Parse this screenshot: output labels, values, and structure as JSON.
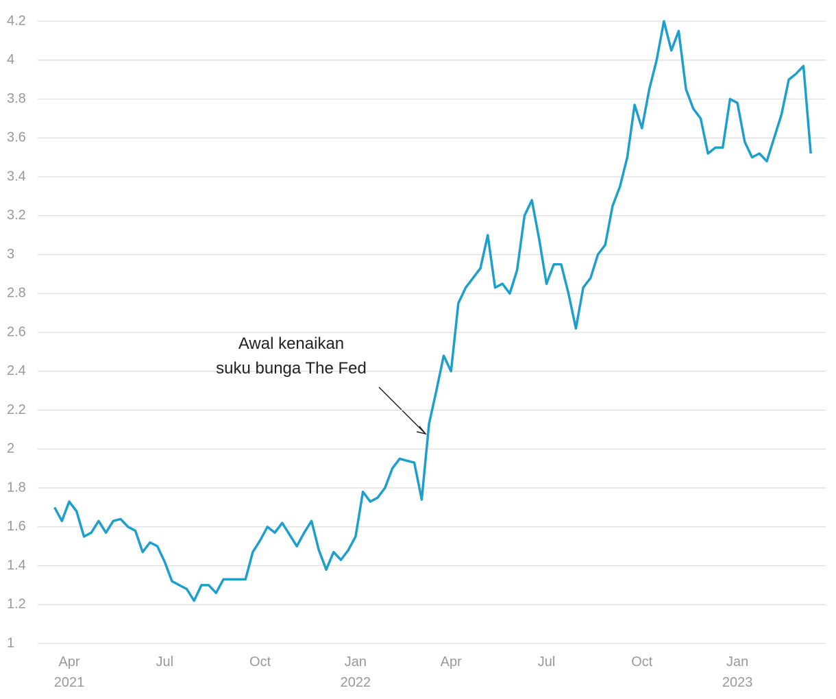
{
  "chart_data": {
    "type": "line",
    "categories": [
      null,
      null,
      "Apr 2021",
      null,
      null,
      null,
      null,
      null,
      null,
      null,
      null,
      null,
      null,
      null,
      null,
      "Jul",
      null,
      null,
      null,
      null,
      null,
      null,
      null,
      null,
      null,
      null,
      null,
      null,
      "Oct",
      null,
      null,
      null,
      null,
      null,
      null,
      null,
      null,
      null,
      null,
      null,
      null,
      "Jan 2022",
      null,
      null,
      null,
      null,
      null,
      null,
      null,
      null,
      null,
      null,
      null,
      null,
      "Apr",
      null,
      null,
      null,
      null,
      null,
      null,
      null,
      null,
      null,
      null,
      null,
      null,
      "Jul",
      null,
      null,
      null,
      null,
      null,
      null,
      null,
      null,
      null,
      null,
      null,
      null,
      "Oct",
      null,
      null,
      null,
      null,
      null,
      null,
      null,
      null,
      null,
      null,
      null,
      null,
      "Jan 2023",
      null,
      null,
      null,
      null,
      null,
      null,
      null,
      null,
      null,
      null
    ],
    "values": [
      1.7,
      1.63,
      1.73,
      1.68,
      1.55,
      1.57,
      1.63,
      1.57,
      1.63,
      1.64,
      1.6,
      1.58,
      1.47,
      1.52,
      1.5,
      1.42,
      1.32,
      1.3,
      1.28,
      1.22,
      1.3,
      1.3,
      1.26,
      1.33,
      1.33,
      1.33,
      1.33,
      1.47,
      1.53,
      1.6,
      1.57,
      1.62,
      1.56,
      1.5,
      1.57,
      1.63,
      1.48,
      1.38,
      1.47,
      1.43,
      1.48,
      1.55,
      1.78,
      1.73,
      1.75,
      1.8,
      1.9,
      1.95,
      1.94,
      1.93,
      1.74,
      2.13,
      2.3,
      2.48,
      2.4,
      2.75,
      2.83,
      2.88,
      2.93,
      3.1,
      2.83,
      2.85,
      2.8,
      2.92,
      3.2,
      3.28,
      3.08,
      2.85,
      2.95,
      2.95,
      2.8,
      2.62,
      2.83,
      2.88,
      3.0,
      3.05,
      3.25,
      3.35,
      3.5,
      3.77,
      3.65,
      3.85,
      4.0,
      4.2,
      4.05,
      4.15,
      3.85,
      3.75,
      3.7,
      3.52,
      3.55,
      3.55,
      3.8,
      3.78,
      3.58,
      3.5,
      3.52,
      3.48,
      3.6,
      3.72,
      3.9,
      3.93,
      3.97,
      3.52
    ],
    "color": "#1d9fcd",
    "ylim": [
      1,
      4.2
    ],
    "yticks": [
      1,
      1.2,
      1.4,
      1.6,
      1.8,
      2,
      2.2,
      2.4,
      2.6,
      2.8,
      3,
      3.2,
      3.4,
      3.6,
      3.8,
      4,
      4.2
    ],
    "grid": true,
    "annotation": [
      "Awal kenaikan",
      "suku bunga The Fed"
    ]
  }
}
